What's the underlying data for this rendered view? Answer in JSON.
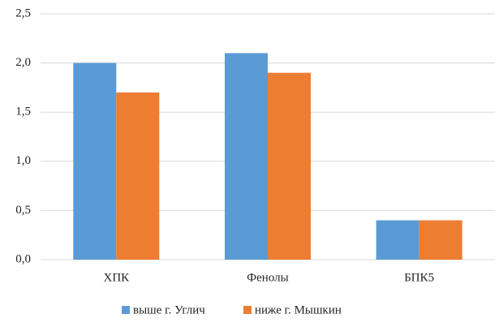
{
  "chart_data": {
    "type": "bar",
    "categories": [
      "ХПК",
      "Фенолы",
      "БПК5"
    ],
    "series": [
      {
        "name": "выше г. Углич",
        "color": "#5b9bd5",
        "values": [
          2.0,
          2.1,
          0.4
        ]
      },
      {
        "name": "ниже г. Мышкин",
        "color": "#ed7d31",
        "values": [
          1.7,
          1.9,
          0.4
        ]
      }
    ],
    "ylim": [
      0,
      2.5
    ],
    "yticks": [
      {
        "value": 0,
        "label": "0,0"
      },
      {
        "value": 0.5,
        "label": "0,5"
      },
      {
        "value": 1,
        "label": "1,0"
      },
      {
        "value": 1.5,
        "label": "1,5"
      },
      {
        "value": 2,
        "label": "2,0"
      },
      {
        "value": 2.5,
        "label": "2,5"
      }
    ],
    "grid": true,
    "legend": "bottom"
  }
}
